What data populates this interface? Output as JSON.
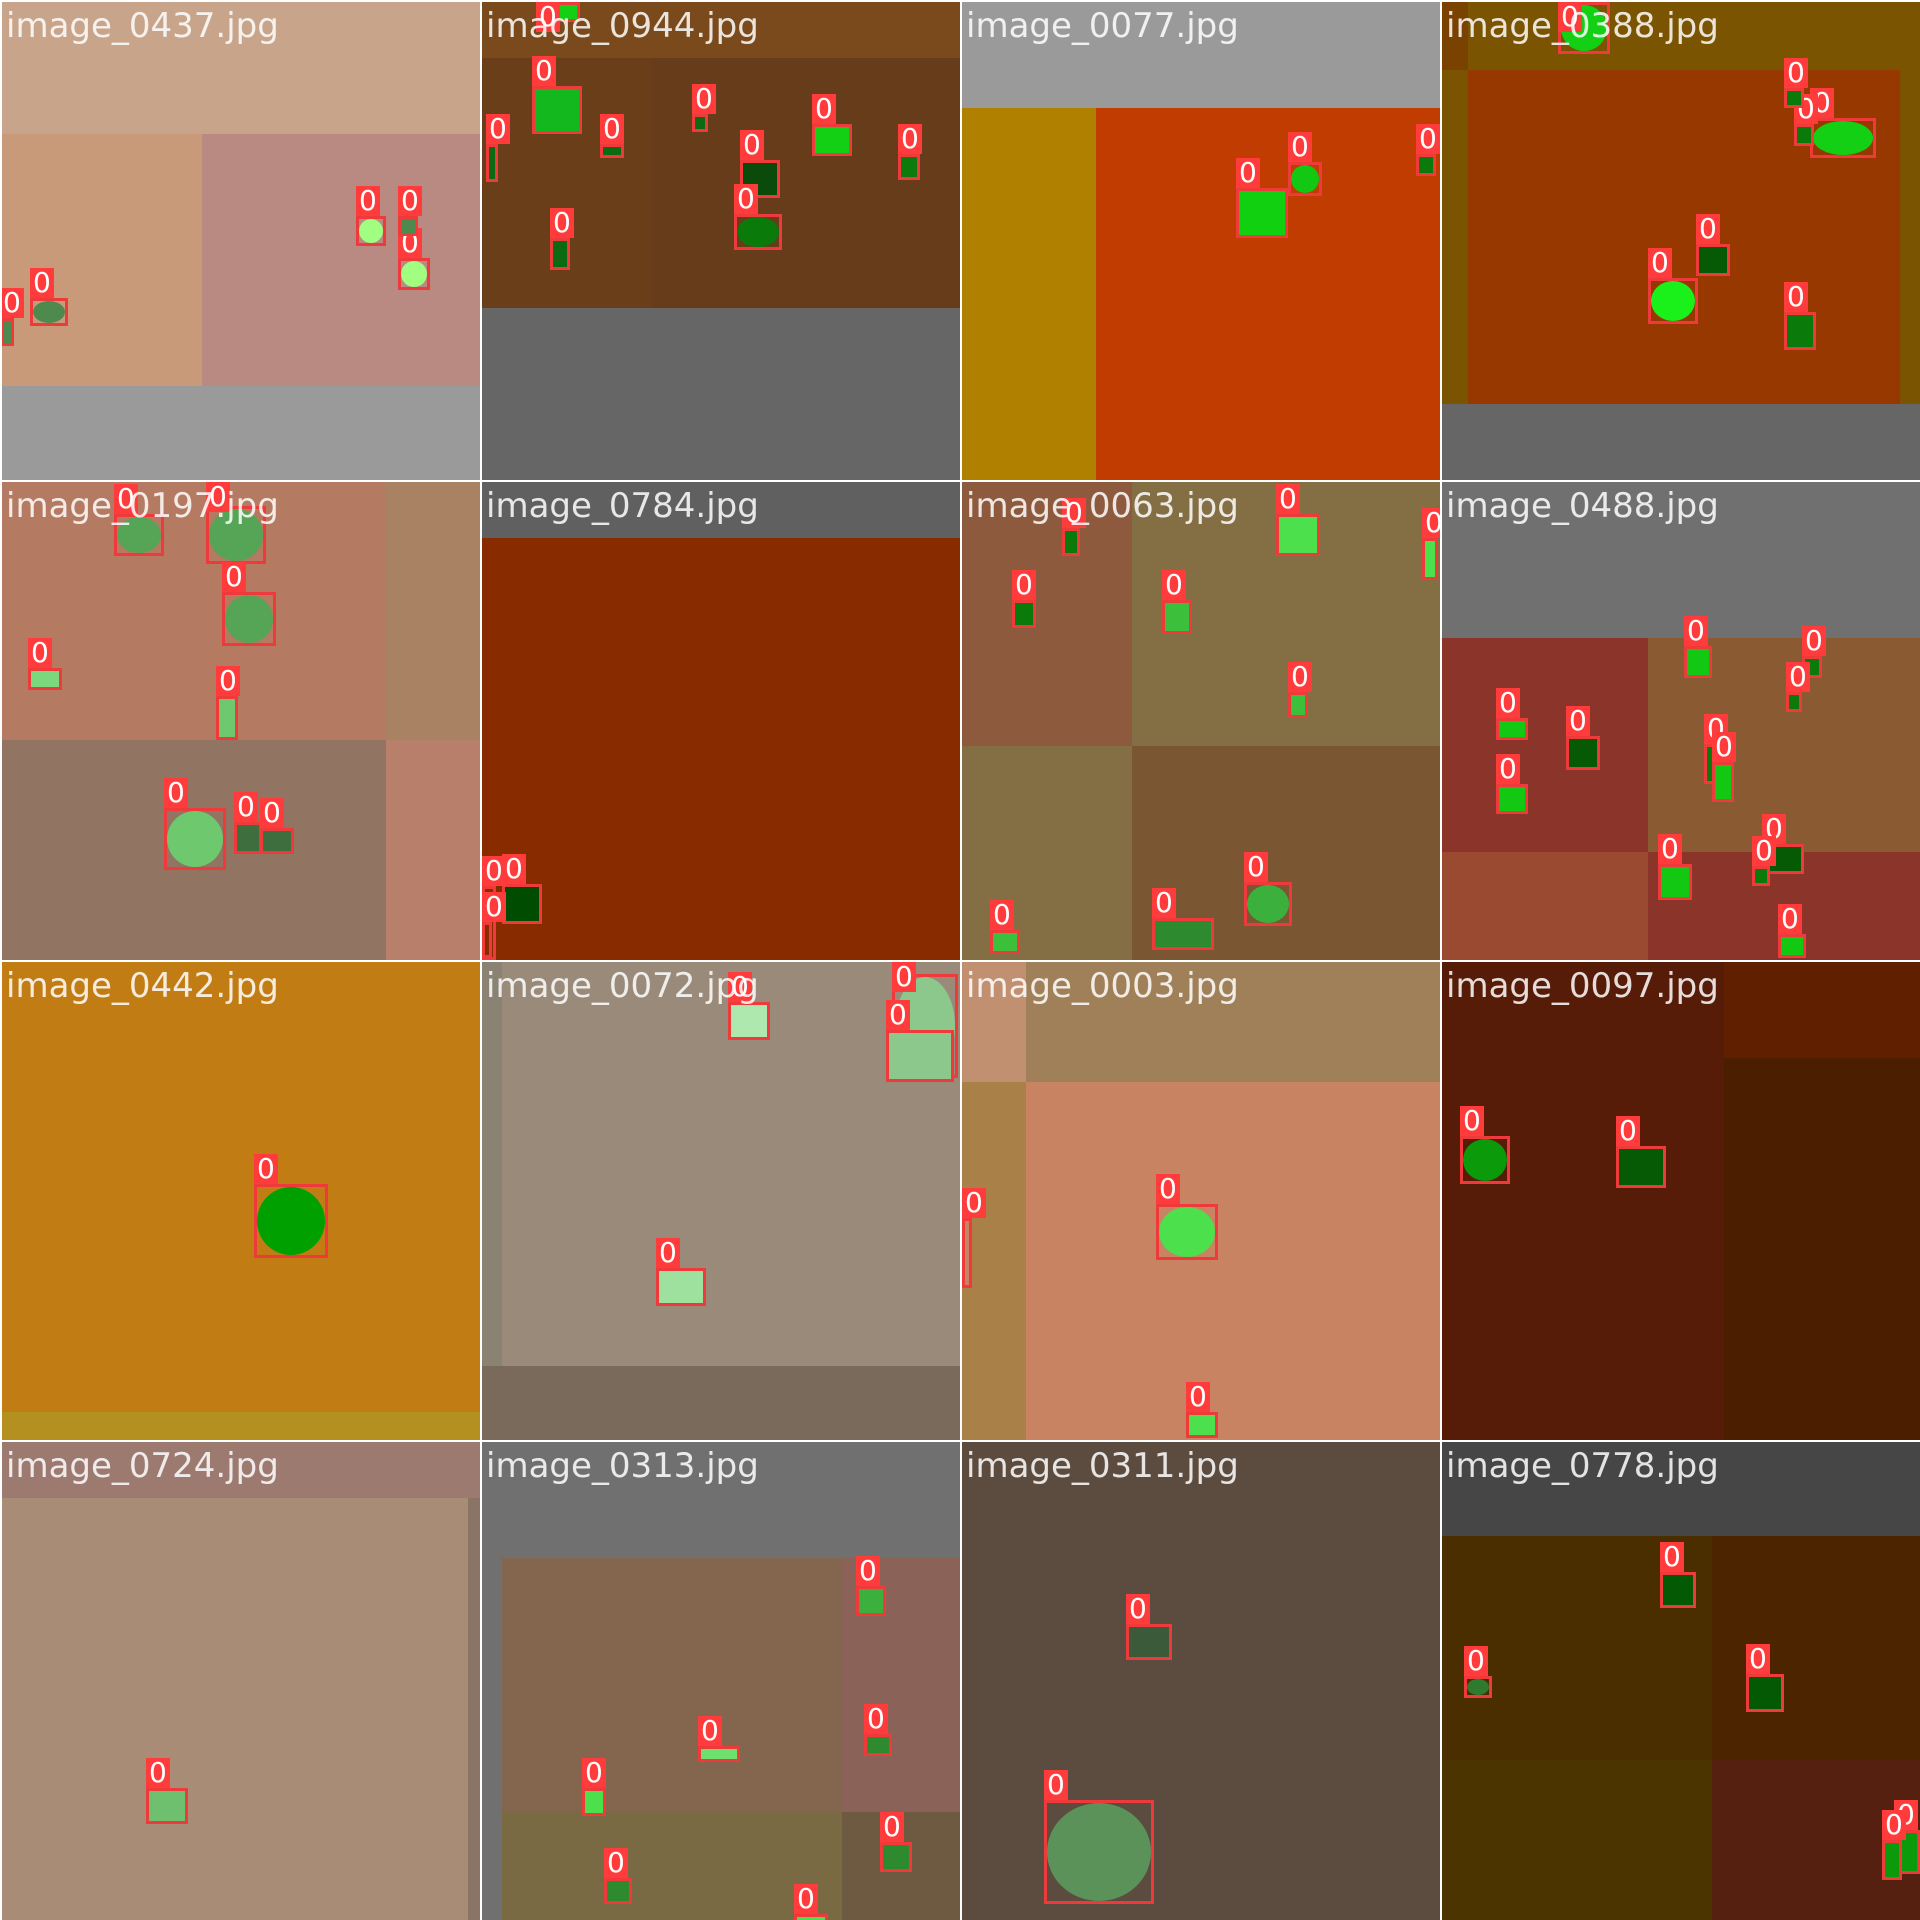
{
  "mosaic": {
    "images": [
      {
        "name": "image_0437.jpg",
        "colors": {
          "bg": "#c4a086",
          "regions": [
            "#c8a48a",
            "#c89a7a",
            "#b88a82",
            "#9a9a9a"
          ],
          "object": "#7fcf6f"
        },
        "detections": [
          {
            "label": "0"
          },
          {
            "label": "0"
          },
          {
            "label": "0"
          },
          {
            "label": "0"
          },
          {
            "label": "0"
          }
        ]
      },
      {
        "name": "image_0944.jpg",
        "colors": {
          "bg": "#6a4018",
          "regions": [
            "#7a4a1c",
            "#6a3e18",
            "#663c1a",
            "#666666"
          ],
          "object": "#12b81e"
        },
        "detections": [
          {
            "label": "0"
          },
          {
            "label": "0"
          },
          {
            "label": "0"
          },
          {
            "label": "0"
          },
          {
            "label": "0"
          },
          {
            "label": "0"
          },
          {
            "label": "0"
          },
          {
            "label": "0"
          },
          {
            "label": "0"
          },
          {
            "label": "0"
          }
        ]
      },
      {
        "name": "image_0077.jpg",
        "colors": {
          "bg": "#9a9a9a",
          "regions": [
            "#b08000",
            "#c03c00"
          ],
          "object": "#10d010"
        },
        "detections": [
          {
            "label": "0"
          },
          {
            "label": "0"
          },
          {
            "label": "0"
          }
        ]
      },
      {
        "name": "image_0388.jpg",
        "colors": {
          "bg": "#7a5400",
          "regions": [
            "#963800",
            "#7a4200",
            "#666666"
          ],
          "object": "#14d014"
        },
        "detections": [
          {
            "label": "0"
          },
          {
            "label": "0"
          },
          {
            "label": "0"
          },
          {
            "label": "0"
          },
          {
            "label": "0"
          },
          {
            "label": "0"
          },
          {
            "label": "0"
          }
        ]
      },
      {
        "name": "image_0197.jpg",
        "colors": {
          "bg": "#b47a62",
          "regions": [
            "#a88262",
            "#927462",
            "#b8806a"
          ],
          "object": "#56a456"
        },
        "detections": [
          {
            "label": "0"
          },
          {
            "label": "0"
          },
          {
            "label": "0"
          },
          {
            "label": "0"
          },
          {
            "label": "0"
          },
          {
            "label": "0"
          },
          {
            "label": "0"
          },
          {
            "label": "0"
          }
        ]
      },
      {
        "name": "image_0784.jpg",
        "colors": {
          "bg": "#882c00",
          "regions": [
            "#606060"
          ],
          "object": "#004c00"
        },
        "detections": [
          {
            "label": "0"
          },
          {
            "label": "0"
          },
          {
            "label": "0"
          }
        ]
      },
      {
        "name": "image_0063.jpg",
        "colors": {
          "bg": "#846a46",
          "regions": [
            "#8e5a3e",
            "#846e44",
            "#7a5632"
          ],
          "object": "#4ce04c"
        },
        "detections": [
          {
            "label": "0"
          },
          {
            "label": "0"
          },
          {
            "label": "0"
          },
          {
            "label": "0"
          },
          {
            "label": "0"
          },
          {
            "label": "0"
          },
          {
            "label": "0"
          },
          {
            "label": "0"
          },
          {
            "label": "0"
          }
        ]
      },
      {
        "name": "image_0488.jpg",
        "colors": {
          "bg": "#707070",
          "regions": [
            "#8a342a",
            "#8a5a32",
            "#9a4a30"
          ],
          "object": "#12c812"
        },
        "detections": [
          {
            "label": "0"
          },
          {
            "label": "0"
          },
          {
            "label": "0"
          },
          {
            "label": "0"
          },
          {
            "label": "0"
          },
          {
            "label": "0"
          },
          {
            "label": "0"
          },
          {
            "label": "0"
          },
          {
            "label": "0"
          },
          {
            "label": "0"
          },
          {
            "label": "0"
          },
          {
            "label": "0"
          }
        ]
      },
      {
        "name": "image_0442.jpg",
        "colors": {
          "bg": "#c27c14",
          "regions": [
            "#b49020"
          ],
          "object": "#00a000"
        },
        "detections": [
          {
            "label": "0"
          }
        ]
      },
      {
        "name": "image_0072.jpg",
        "colors": {
          "bg": "#9a8a7a",
          "regions": [
            "#7a6a5c",
            "#8a8272"
          ],
          "object": "#9ee09e"
        },
        "detections": [
          {
            "label": "0"
          },
          {
            "label": "0"
          },
          {
            "label": "0"
          },
          {
            "label": "0"
          }
        ]
      },
      {
        "name": "image_0003.jpg",
        "colors": {
          "bg": "#c88462",
          "regions": [
            "#a08058",
            "#a88048",
            "#c09070"
          ],
          "object": "#4ce04c"
        },
        "detections": [
          {
            "label": "0"
          },
          {
            "label": "0"
          },
          {
            "label": "0"
          }
        ]
      },
      {
        "name": "image_0097.jpg",
        "colors": {
          "bg": "#561c08",
          "regions": [
            "#4c1e00",
            "#602000"
          ],
          "object": "#0a9a0a"
        },
        "detections": [
          {
            "label": "0"
          },
          {
            "label": "0"
          }
        ]
      },
      {
        "name": "image_0724.jpg",
        "colors": {
          "bg": "#a88c76",
          "regions": [
            "#9c7a70",
            "#8a7466"
          ],
          "object": "#6ec06e"
        },
        "detections": [
          {
            "label": "0"
          }
        ]
      },
      {
        "name": "image_0313.jpg",
        "colors": {
          "bg": "#707070",
          "regions": [
            "#84664e",
            "#8a6258",
            "#7a6a44",
            "#6e5a40"
          ],
          "object": "#3cb03c"
        },
        "detections": [
          {
            "label": "0"
          },
          {
            "label": "0"
          },
          {
            "label": "0"
          },
          {
            "label": "0"
          },
          {
            "label": "0"
          },
          {
            "label": "0"
          },
          {
            "label": "0"
          }
        ]
      },
      {
        "name": "image_0311.jpg",
        "colors": {
          "bg": "#5c4c40",
          "regions": [],
          "object": "#5a925a"
        },
        "detections": [
          {
            "label": "0"
          },
          {
            "label": "0"
          }
        ]
      },
      {
        "name": "image_0778.jpg",
        "colors": {
          "bg": "#4a2e00",
          "regions": [
            "#464646",
            "#4c2400",
            "#4c3400",
            "#562010"
          ],
          "object": "#045a04"
        },
        "detections": [
          {
            "label": "0"
          },
          {
            "label": "0"
          },
          {
            "label": "0"
          },
          {
            "label": "0"
          },
          {
            "label": "0"
          }
        ]
      }
    ]
  }
}
